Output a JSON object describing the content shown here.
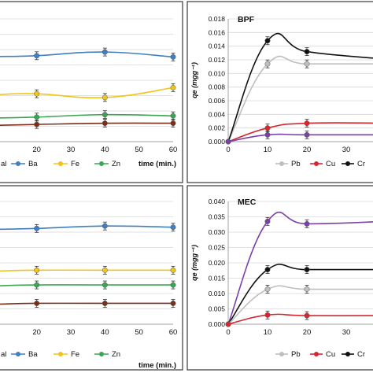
{
  "chart_data": [
    {
      "type": "line",
      "panel": "top-left",
      "title": "",
      "xlabel": "time (min.)",
      "ylabel": "",
      "xlim": [
        0,
        60
      ],
      "x_ticks": [
        "20",
        "30",
        "40",
        "50",
        "60"
      ],
      "legend": [
        "al",
        "Ba",
        "Fe",
        "Zn"
      ],
      "series": [
        {
          "name": "Ba",
          "color": "#3f7fbf",
          "x": [
            20,
            40,
            60
          ],
          "y_rel": [
            0.3,
            0.27,
            0.31
          ]
        },
        {
          "name": "Fe",
          "color": "#f2c419",
          "x": [
            20,
            40,
            60
          ],
          "y_rel": [
            0.61,
            0.64,
            0.56
          ]
        },
        {
          "name": "Zn",
          "color": "#3aa651",
          "x": [
            20,
            40,
            60
          ],
          "y_rel": [
            0.8,
            0.78,
            0.79
          ]
        },
        {
          "name": "",
          "color": "#7a2e1c",
          "x": [
            20,
            40,
            60
          ],
          "y_rel": [
            0.86,
            0.85,
            0.85
          ]
        }
      ]
    },
    {
      "type": "line",
      "panel": "top-right",
      "title": "BPF",
      "xlabel": "",
      "ylabel": "qe (mgg⁻¹)",
      "xlim": [
        0,
        40
      ],
      "ylim": [
        0,
        0.018
      ],
      "y_ticks": [
        "0.000",
        "0.002",
        "0.004",
        "0.006",
        "0.008",
        "0.010",
        "0.012",
        "0.014",
        "0.016",
        "0.018"
      ],
      "x_ticks": [
        "0",
        "10",
        "20",
        "30"
      ],
      "legend": [
        "Pb",
        "Cu",
        "Cr"
      ],
      "series": [
        {
          "name": "Pb",
          "color": "#bfbfbf",
          "x": [
            0,
            10,
            20,
            40
          ],
          "y": [
            0,
            0.0114,
            0.0114,
            0.0114
          ]
        },
        {
          "name": "Cu",
          "color": "#d9262e",
          "x": [
            0,
            10,
            20,
            40
          ],
          "y": [
            0,
            0.002,
            0.0027,
            0.0027
          ]
        },
        {
          "name": "Cr",
          "color": "#111111",
          "x": [
            0,
            10,
            20,
            40
          ],
          "y": [
            0,
            0.0148,
            0.0132,
            0.0121
          ]
        },
        {
          "name": "",
          "color": "#7b3fa8",
          "x": [
            0,
            10,
            20,
            40
          ],
          "y": [
            0,
            0.001,
            0.001,
            0.001
          ]
        }
      ]
    },
    {
      "type": "line",
      "panel": "bottom-left",
      "title": "",
      "xlabel": "time (min.)",
      "ylabel": "",
      "xlim": [
        0,
        60
      ],
      "x_ticks": [
        "20",
        "30",
        "40",
        "50",
        "60"
      ],
      "legend": [
        "al",
        "Ba",
        "Fe",
        "Zn"
      ],
      "series": [
        {
          "name": "Ba",
          "color": "#3f7fbf",
          "x": [
            20,
            40,
            60
          ],
          "y_rel": [
            0.22,
            0.2,
            0.21
          ]
        },
        {
          "name": "Fe",
          "color": "#f2c419",
          "x": [
            20,
            40,
            60
          ],
          "y_rel": [
            0.56,
            0.56,
            0.56
          ]
        },
        {
          "name": "Zn",
          "color": "#3aa651",
          "x": [
            20,
            40,
            60
          ],
          "y_rel": [
            0.68,
            0.68,
            0.68
          ]
        },
        {
          "name": "",
          "color": "#7a2e1c",
          "x": [
            20,
            40,
            60
          ],
          "y_rel": [
            0.83,
            0.83,
            0.83
          ]
        }
      ]
    },
    {
      "type": "line",
      "panel": "bottom-right",
      "title": "MEC",
      "xlabel": "",
      "ylabel": "qe (mgg⁻¹)",
      "xlim": [
        0,
        40
      ],
      "ylim": [
        0,
        0.04
      ],
      "y_ticks": [
        "0.000",
        "0.005",
        "0.010",
        "0.015",
        "0.020",
        "0.025",
        "0.030",
        "0.035",
        "0.040"
      ],
      "x_ticks": [
        "0",
        "10",
        "20",
        "30"
      ],
      "legend": [
        "Pb",
        "Cu",
        "Cr"
      ],
      "series": [
        {
          "name": "",
          "color": "#7b3fa8",
          "x": [
            0,
            10,
            20,
            40
          ],
          "y": [
            0,
            0.0335,
            0.0327,
            0.0335
          ]
        },
        {
          "name": "Cr",
          "color": "#111111",
          "x": [
            0,
            10,
            20,
            40
          ],
          "y": [
            0,
            0.0178,
            0.0178,
            0.0178
          ]
        },
        {
          "name": "Pb",
          "color": "#bfbfbf",
          "x": [
            0,
            10,
            20,
            40
          ],
          "y": [
            0,
            0.0114,
            0.0114,
            0.0114
          ]
        },
        {
          "name": "Cu",
          "color": "#d9262e",
          "x": [
            0,
            10,
            20,
            40
          ],
          "y": [
            0,
            0.003,
            0.0028,
            0.0028
          ]
        }
      ]
    }
  ]
}
